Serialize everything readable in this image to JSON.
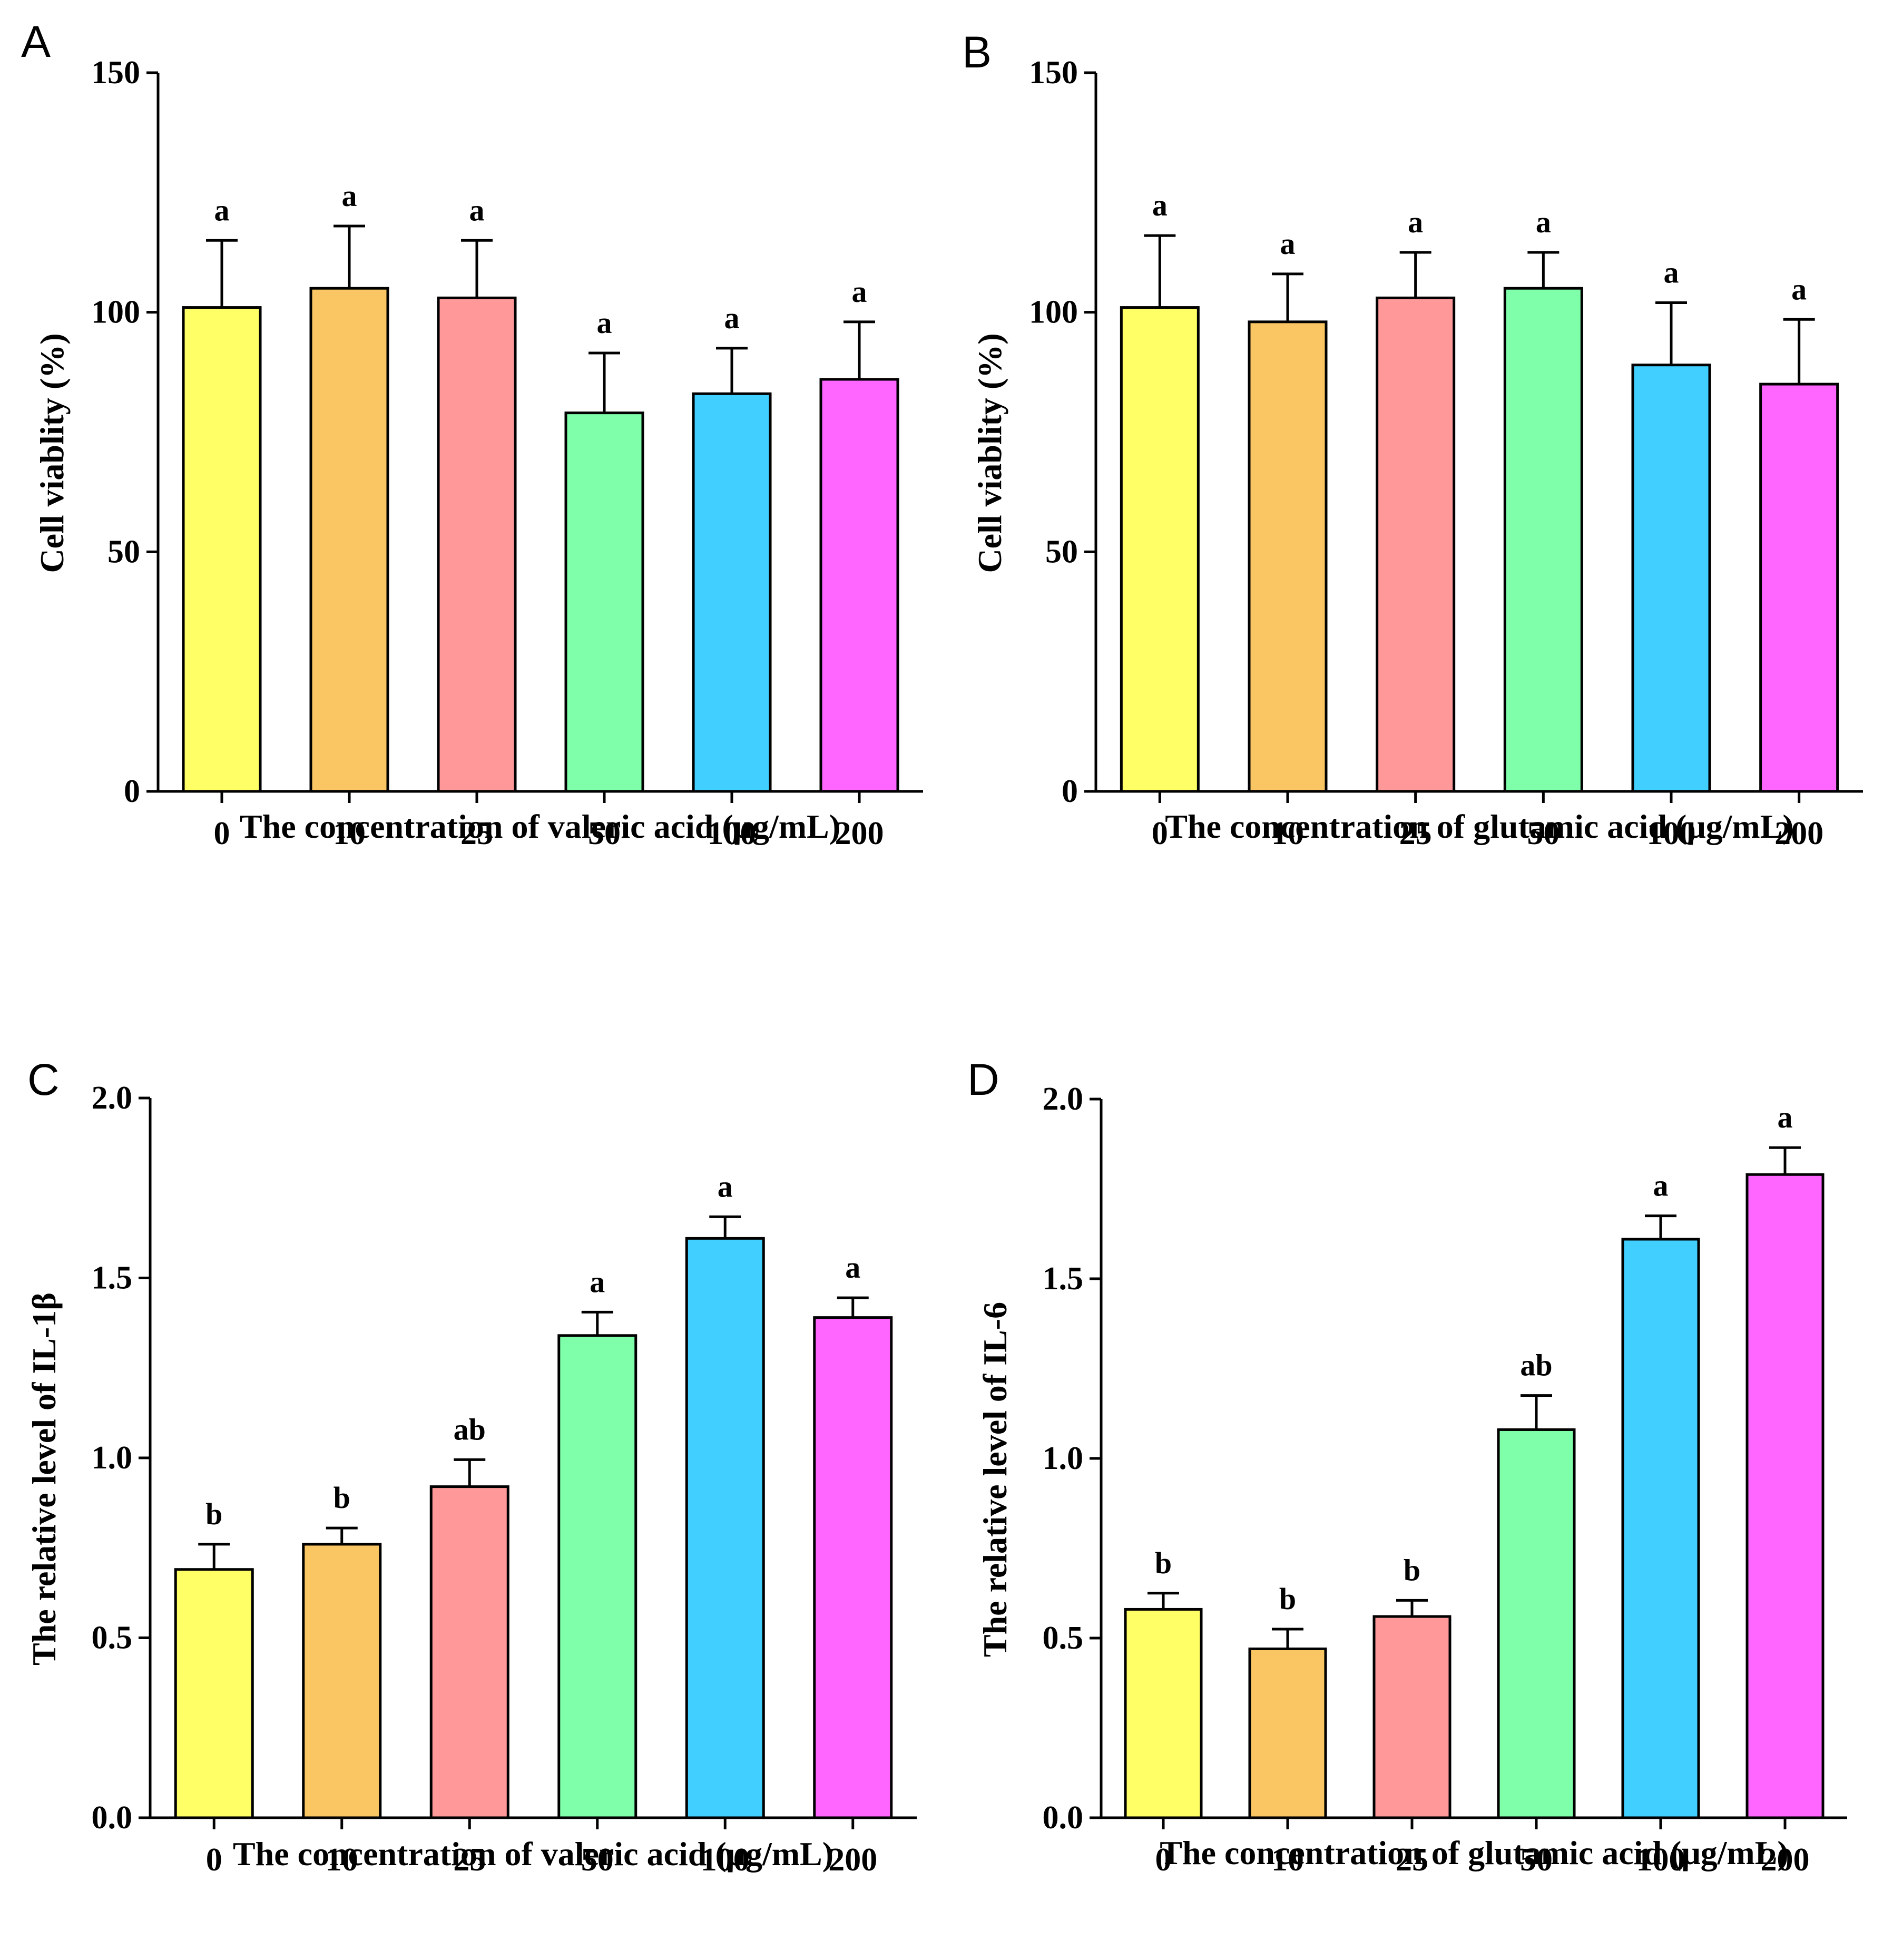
{
  "chart_data": [
    {
      "panel": "A",
      "type": "bar",
      "categories": [
        "0",
        "10",
        "25",
        "50",
        "100",
        "200"
      ],
      "values": [
        101,
        105,
        103,
        79,
        83,
        86
      ],
      "errors": [
        14,
        13,
        12,
        12.5,
        9.5,
        12
      ],
      "significance": [
        "a",
        "a",
        "a",
        "a",
        "a",
        "a"
      ],
      "ylabel": "Cell viablity (%)",
      "xlabel": "The concentration of valeric acid  (μg/mL)",
      "ylim": [
        0,
        150
      ],
      "yticks": [
        0,
        50,
        100,
        150
      ],
      "ytick_labels": [
        "0",
        "50",
        "100",
        "150"
      ],
      "colors": [
        "#FFFF66",
        "#F9C663",
        "#FF9999",
        "#80FFAA",
        "#40CFFF",
        "#FF66FF"
      ]
    },
    {
      "panel": "B",
      "type": "bar",
      "categories": [
        "0",
        "10",
        "25",
        "50",
        "100",
        "200"
      ],
      "values": [
        101,
        98,
        103,
        105,
        89,
        85
      ],
      "errors": [
        15,
        10,
        9.5,
        7.5,
        13,
        13.5
      ],
      "significance": [
        "a",
        "a",
        "a",
        "a",
        "a",
        "a"
      ],
      "ylabel": "Cell viablity (%)",
      "xlabel": "The concentration of glutamic acid (μg/mL)",
      "ylim": [
        0,
        150
      ],
      "yticks": [
        0,
        50,
        100,
        150
      ],
      "ytick_labels": [
        "0",
        "50",
        "100",
        "150"
      ],
      "colors": [
        "#FFFF66",
        "#F9C663",
        "#FF9999",
        "#80FFAA",
        "#40CFFF",
        "#FF66FF"
      ]
    },
    {
      "panel": "C",
      "type": "bar",
      "categories": [
        "0",
        "10",
        "25",
        "50",
        "100",
        "200"
      ],
      "values": [
        0.69,
        0.76,
        0.92,
        1.34,
        1.61,
        1.39
      ],
      "errors": [
        0.07,
        0.045,
        0.075,
        0.065,
        0.06,
        0.055
      ],
      "significance": [
        "b",
        "b",
        "ab",
        "a",
        "a",
        "a"
      ],
      "ylabel": "The relative level of IL-1β",
      "xlabel": "The concentration of valeric acid  (μg/mL)",
      "ylim": [
        0,
        2.0
      ],
      "yticks": [
        0,
        0.5,
        1.0,
        1.5,
        2.0
      ],
      "ytick_labels": [
        "0.0",
        "0.5",
        "1.0",
        "1.5",
        "2.0"
      ],
      "colors": [
        "#FFFF66",
        "#F9C663",
        "#FF9999",
        "#80FFAA",
        "#40CFFF",
        "#FF66FF"
      ]
    },
    {
      "panel": "D",
      "type": "bar",
      "categories": [
        "0",
        "10",
        "25",
        "50",
        "100",
        "200"
      ],
      "values": [
        0.58,
        0.47,
        0.56,
        1.08,
        1.61,
        1.79
      ],
      "errors": [
        0.045,
        0.055,
        0.045,
        0.095,
        0.065,
        0.075
      ],
      "significance": [
        "b",
        "b",
        "b",
        "ab",
        "a",
        "a"
      ],
      "ylabel": "The relative level of IL-6",
      "xlabel": "The concentration of glutamic acid (μg/mL)",
      "ylim": [
        0,
        2.0
      ],
      "yticks": [
        0,
        0.5,
        1.0,
        1.5,
        2.0
      ],
      "ytick_labels": [
        "0.0",
        "0.5",
        "1.0",
        "1.5",
        "2.0"
      ],
      "colors": [
        "#FFFF66",
        "#F9C663",
        "#FF9999",
        "#80FFAA",
        "#40CFFF",
        "#FF66FF"
      ]
    }
  ]
}
